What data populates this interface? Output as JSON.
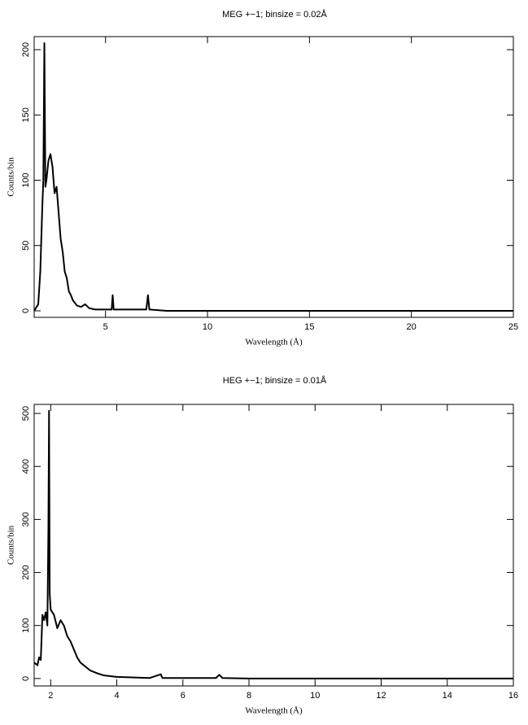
{
  "chart_data": [
    {
      "type": "line",
      "title": "MEG +−1; binsize = 0.02Å",
      "x_label": "Wavelength (Å)",
      "y_label": "Counts/bin",
      "color": "#000000",
      "x": [
        1.5,
        1.7,
        1.8,
        1.9,
        1.95,
        2.0,
        2.05,
        2.1,
        2.2,
        2.3,
        2.4,
        2.5,
        2.6,
        2.7,
        2.8,
        2.9,
        3.0,
        3.1,
        3.2,
        3.3,
        3.4,
        3.5,
        3.6,
        3.8,
        4.0,
        4.2,
        4.5,
        5.0,
        5.3,
        5.35,
        5.4,
        6.0,
        7.0,
        7.08,
        7.15,
        8,
        10,
        15,
        20,
        25
      ],
      "values": [
        0,
        5,
        30,
        80,
        100,
        205,
        95,
        100,
        115,
        120,
        110,
        90,
        95,
        75,
        55,
        45,
        30,
        25,
        15,
        12,
        8,
        6,
        4,
        3,
        5,
        2,
        1,
        1,
        1,
        12,
        1,
        1,
        1,
        12,
        1,
        0,
        0,
        0,
        0,
        0
      ],
      "xlim": [
        1.5,
        25
      ],
      "ylim": [
        -5,
        210
      ],
      "xticks": [
        5,
        10,
        15,
        20,
        25
      ],
      "yticks": [
        0,
        50,
        100,
        150,
        200
      ]
    },
    {
      "type": "line",
      "title": "HEG +−1; binsize = 0.01Å",
      "x_label": "Wavelength (Å)",
      "y_label": "Counts/bin",
      "color": "#000000",
      "x": [
        1.5,
        1.6,
        1.65,
        1.7,
        1.75,
        1.8,
        1.85,
        1.9,
        1.93,
        1.95,
        1.97,
        2.0,
        2.1,
        2.2,
        2.3,
        2.4,
        2.5,
        2.6,
        2.7,
        2.8,
        2.9,
        3.0,
        3.2,
        3.4,
        3.6,
        4,
        5,
        5.33,
        5.38,
        6,
        7,
        7.1,
        7.2,
        8,
        10,
        12,
        14,
        16
      ],
      "values": [
        30,
        25,
        40,
        35,
        120,
        110,
        125,
        100,
        280,
        505,
        160,
        130,
        120,
        95,
        110,
        100,
        80,
        70,
        55,
        40,
        30,
        25,
        15,
        10,
        6,
        3,
        1,
        8,
        1,
        1,
        1,
        7,
        1,
        0,
        0,
        0,
        0,
        0
      ],
      "xlim": [
        1.5,
        16
      ],
      "ylim": [
        -14,
        517
      ],
      "xticks": [
        2,
        4,
        6,
        8,
        10,
        12,
        14,
        16
      ],
      "yticks": [
        0,
        100,
        200,
        300,
        400,
        500
      ]
    }
  ]
}
